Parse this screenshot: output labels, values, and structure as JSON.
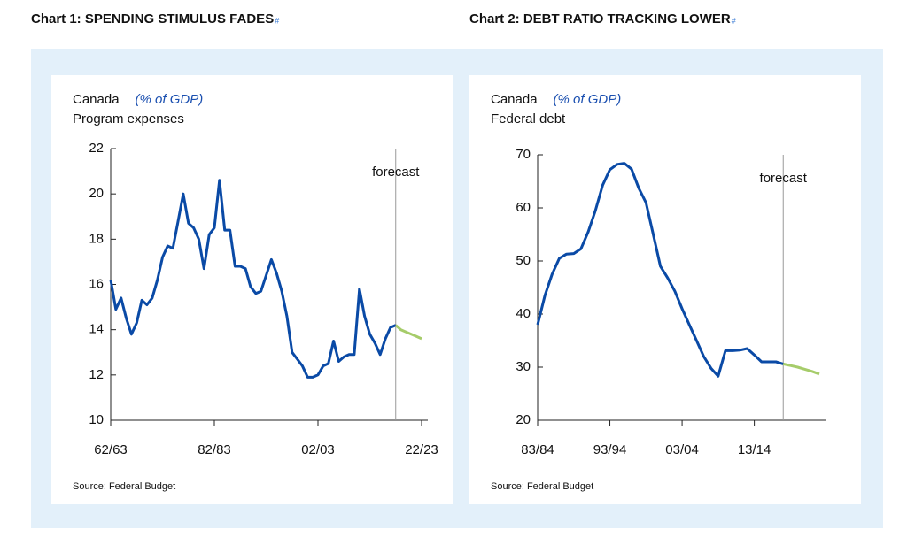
{
  "chart_data": [
    {
      "type": "line",
      "title": "Chart 1: SPENDING STIMULUS FADES",
      "title_mark": "#",
      "subtitle": "Canada",
      "unit": "(% of GDP)",
      "ylabel": "Program expenses",
      "annotation": "forecast",
      "source": "Source: Federal Budget",
      "categories": [
        "62/63",
        null,
        null,
        null,
        null,
        null,
        null,
        null,
        null,
        null,
        null,
        null,
        null,
        null,
        null,
        null,
        null,
        null,
        null,
        null,
        "82/83",
        null,
        null,
        null,
        null,
        null,
        null,
        null,
        null,
        null,
        null,
        null,
        null,
        null,
        null,
        null,
        null,
        null,
        null,
        null,
        "02/03",
        null,
        null,
        null,
        null,
        null,
        null,
        null,
        null,
        null,
        null,
        null,
        null,
        null,
        null,
        null,
        null,
        null,
        null,
        null,
        "22/23"
      ],
      "series": [
        {
          "color": "#0a4aa6",
          "values": [
            16.2,
            14.9,
            15.4,
            14.5,
            13.8,
            14.3,
            15.3,
            15.1,
            15.4,
            16.2,
            17.2,
            17.7,
            17.6,
            18.8,
            20.0,
            18.7,
            18.5,
            18.0,
            16.7,
            18.2,
            18.5,
            20.6,
            18.4,
            18.4,
            16.8,
            16.8,
            16.7,
            15.9,
            15.6,
            15.7,
            16.4,
            17.1,
            16.5,
            15.7,
            14.6,
            13.0,
            12.7,
            12.4,
            11.9,
            11.9,
            12.0,
            12.4,
            12.5,
            13.5,
            12.6,
            12.8,
            12.9,
            12.9,
            15.8,
            14.6,
            13.8,
            13.4,
            12.9,
            13.6,
            14.1,
            14.2,
            null,
            null,
            null,
            null,
            null
          ]
        },
        {
          "color": "#a6cc6a",
          "values": [
            null,
            null,
            null,
            null,
            null,
            null,
            null,
            null,
            null,
            null,
            null,
            null,
            null,
            null,
            null,
            null,
            null,
            null,
            null,
            null,
            null,
            null,
            null,
            null,
            null,
            null,
            null,
            null,
            null,
            null,
            null,
            null,
            null,
            null,
            null,
            null,
            null,
            null,
            null,
            null,
            null,
            null,
            null,
            null,
            null,
            null,
            null,
            null,
            null,
            null,
            null,
            null,
            null,
            null,
            null,
            14.2,
            14.0,
            13.9,
            13.8,
            13.7,
            13.6
          ]
        }
      ],
      "ylim": [
        10,
        22
      ],
      "yticks": [
        10,
        12,
        14,
        16,
        18,
        20,
        22
      ]
    },
    {
      "type": "line",
      "title": "Chart 2: DEBT RATIO TRACKING LOWER",
      "title_mark": "#",
      "subtitle": "Canada",
      "unit": "(% of GDP)",
      "ylabel": "Federal debt",
      "annotation": "forecast",
      "source": "Source: Federal Budget",
      "categories": [
        "83/84",
        null,
        null,
        null,
        null,
        null,
        null,
        null,
        null,
        null,
        "93/94",
        null,
        null,
        null,
        null,
        null,
        null,
        null,
        null,
        null,
        "03/04",
        null,
        null,
        null,
        null,
        null,
        null,
        null,
        null,
        null,
        "13/14",
        null,
        null,
        null,
        null,
        null,
        null,
        null,
        null,
        null
      ],
      "series": [
        {
          "color": "#0a4aa6",
          "values": [
            38,
            43.5,
            47.5,
            50.5,
            51.3,
            51.4,
            52.3,
            55.5,
            59.5,
            64.3,
            67.2,
            68.2,
            68.4,
            67.3,
            63.7,
            61,
            55,
            49,
            46.8,
            44.3,
            41,
            38,
            35,
            32,
            29.8,
            28.3,
            33.1,
            33.1,
            33.2,
            33.5,
            32.3,
            31,
            31,
            31,
            30.6,
            null,
            null,
            null,
            null,
            null
          ]
        },
        {
          "color": "#a6cc6a",
          "values": [
            null,
            null,
            null,
            null,
            null,
            null,
            null,
            null,
            null,
            null,
            null,
            null,
            null,
            null,
            null,
            null,
            null,
            null,
            null,
            null,
            null,
            null,
            null,
            null,
            null,
            null,
            null,
            null,
            null,
            null,
            null,
            null,
            null,
            null,
            30.6,
            30.3,
            30,
            29.6,
            29.2,
            28.7
          ]
        }
      ],
      "ylim": [
        20,
        70
      ],
      "yticks": [
        20,
        30,
        40,
        50,
        60,
        70
      ]
    }
  ]
}
